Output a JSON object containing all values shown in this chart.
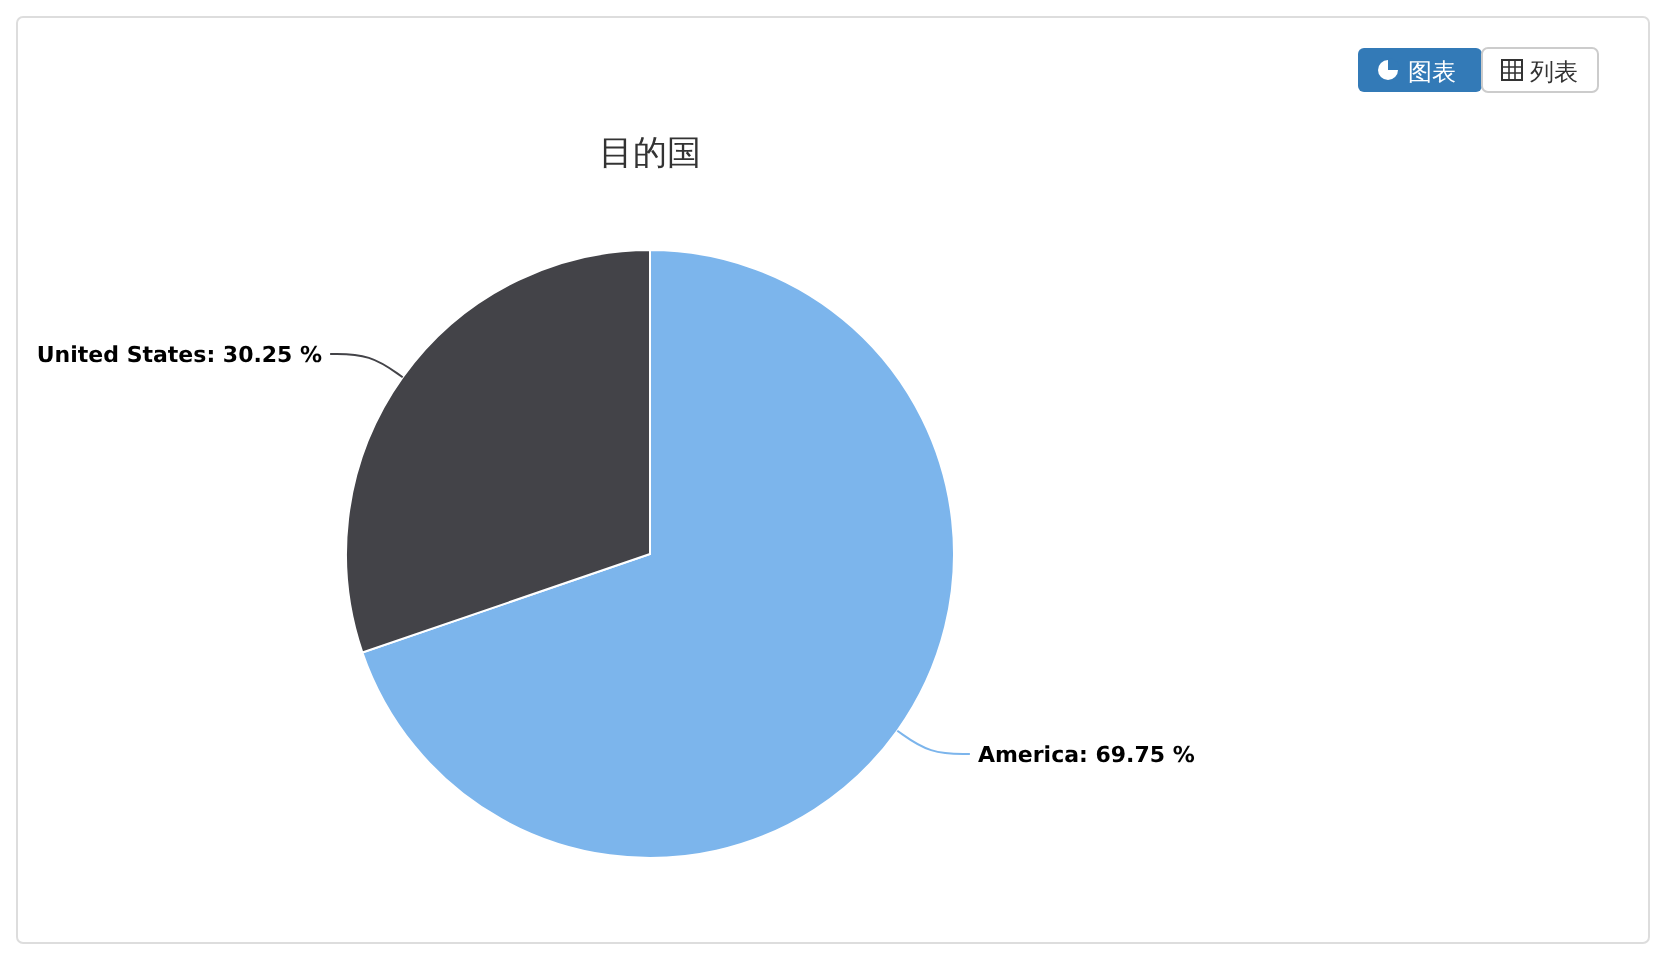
{
  "chart_data": {
    "type": "pie",
    "title": "目的国",
    "categories": [
      "America",
      "United States"
    ],
    "values": [
      69.75,
      30.25
    ],
    "colors": [
      "#7cb5ec",
      "#434348"
    ],
    "value_labels": [
      ": 69.75 %",
      ": 30.25 %"
    ],
    "legend": false,
    "annotations": [
      "图表",
      "列表"
    ]
  }
}
